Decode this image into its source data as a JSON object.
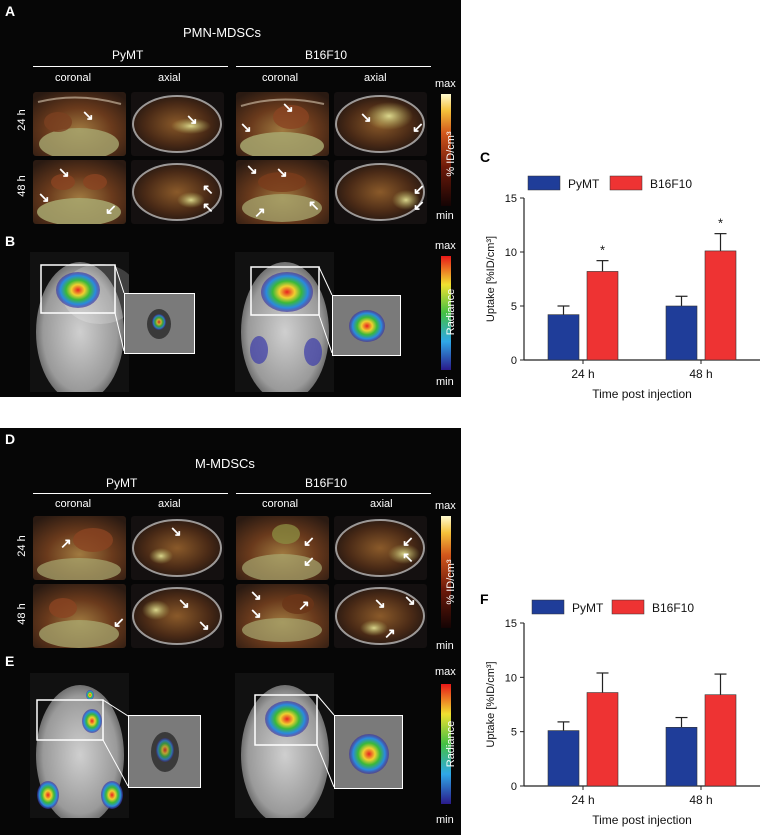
{
  "panelA": {
    "letter": "A",
    "title": "PMN-MDSCs",
    "groups": [
      "PyMT",
      "B16F10"
    ],
    "views": [
      "coronal",
      "axial",
      "coronal",
      "axial"
    ],
    "rows": [
      "24 h",
      "48 h"
    ],
    "scale_max": "max",
    "scale_min": "min",
    "scale_label": "% ID/cm³"
  },
  "panelB": {
    "letter": "B",
    "scale_max": "max",
    "scale_min": "min",
    "scale_label": "Radiance"
  },
  "panelD": {
    "letter": "D",
    "title": "M-MDSCs",
    "groups": [
      "PyMT",
      "B16F10"
    ],
    "views": [
      "coronal",
      "axial",
      "coronal",
      "axial"
    ],
    "rows": [
      "24 h",
      "48 h"
    ],
    "scale_max": "max",
    "scale_min": "min",
    "scale_label": "% ID/cm³"
  },
  "panelE": {
    "letter": "E",
    "scale_max": "max",
    "scale_min": "min",
    "scale_label": "Radiance"
  },
  "colors": {
    "pymt": "#1f3d99",
    "b16f10": "#ee3333"
  },
  "chart_data": [
    {
      "panel": "C",
      "type": "bar",
      "categories": [
        "24 h",
        "48 h"
      ],
      "series": [
        {
          "name": "PyMT",
          "values": [
            4.2,
            5.0
          ],
          "errors": [
            0.8,
            0.9
          ]
        },
        {
          "name": "B16F10",
          "values": [
            8.2,
            10.1
          ],
          "errors": [
            1.0,
            1.6
          ]
        }
      ],
      "significance": [
        "*",
        "*"
      ],
      "title": "",
      "xlabel": "Time post injection",
      "ylabel": "Uptake [%ID/cm³]",
      "ylim": [
        0,
        15
      ],
      "yticks": [
        "0",
        "5",
        "10",
        "15"
      ],
      "legend_position": "top"
    },
    {
      "panel": "F",
      "type": "bar",
      "categories": [
        "24 h",
        "48 h"
      ],
      "series": [
        {
          "name": "PyMT",
          "values": [
            5.1,
            5.4
          ],
          "errors": [
            0.8,
            0.9
          ]
        },
        {
          "name": "B16F10",
          "values": [
            8.6,
            8.4
          ],
          "errors": [
            1.8,
            1.9
          ]
        }
      ],
      "significance": [
        "",
        ""
      ],
      "title": "",
      "xlabel": "Time post injection",
      "ylabel": "Uptake [%ID/cm³]",
      "ylim": [
        0,
        15
      ],
      "yticks": [
        "0",
        "5",
        "10",
        "15"
      ],
      "legend_position": "top"
    }
  ]
}
